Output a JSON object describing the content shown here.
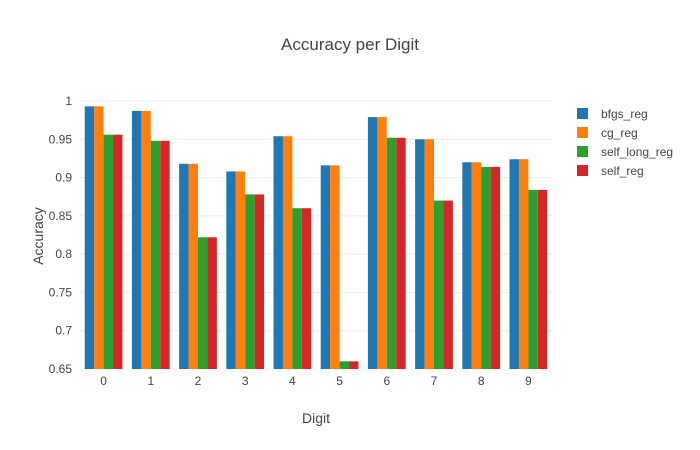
{
  "chart_data": {
    "type": "bar",
    "title": "Accuracy per Digit",
    "xlabel": "Digit",
    "ylabel": "Accuracy",
    "categories": [
      "0",
      "1",
      "2",
      "3",
      "4",
      "5",
      "6",
      "7",
      "8",
      "9"
    ],
    "ylim": [
      0.65,
      1.0
    ],
    "yticks": [
      "0.65",
      "0.7",
      "0.75",
      "0.8",
      "0.85",
      "0.9",
      "0.95",
      "1"
    ],
    "grid": true,
    "legend_position": "top-right",
    "series": [
      {
        "name": "bfgs_reg",
        "color": "#1f77b4",
        "values": [
          0.993,
          0.987,
          0.918,
          0.908,
          0.954,
          0.916,
          0.979,
          0.95,
          0.92,
          0.924
        ]
      },
      {
        "name": "cg_reg",
        "color": "#ff7f0e",
        "values": [
          0.993,
          0.987,
          0.918,
          0.908,
          0.954,
          0.916,
          0.979,
          0.95,
          0.92,
          0.924
        ]
      },
      {
        "name": "self_long_reg",
        "color": "#2ca02c",
        "values": [
          0.956,
          0.948,
          0.822,
          0.878,
          0.86,
          0.66,
          0.952,
          0.87,
          0.914,
          0.884
        ]
      },
      {
        "name": "self_reg",
        "color": "#d62728",
        "values": [
          0.956,
          0.948,
          0.822,
          0.878,
          0.86,
          0.66,
          0.952,
          0.87,
          0.914,
          0.884
        ]
      }
    ]
  }
}
